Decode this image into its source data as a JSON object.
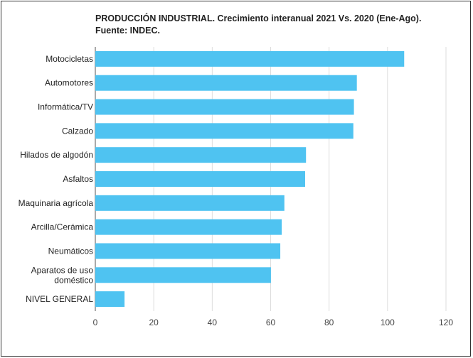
{
  "chart_data": {
    "type": "bar",
    "orientation": "horizontal",
    "title": "PRODUCCIÓN INDUSTRIAL. Crecimiento interanual 2021 Vs. 2020 (Ene-Ago). Fuente: INDEC.",
    "xlabel": "",
    "ylabel": "",
    "xlim": [
      0,
      120
    ],
    "xticks": [
      0,
      20,
      40,
      60,
      80,
      100,
      120
    ],
    "grid": true,
    "bar_color": "#4FC3F1",
    "categories": [
      [
        "Motocicletas"
      ],
      [
        "Automotores"
      ],
      [
        "Informática/TV"
      ],
      [
        "Calzado"
      ],
      [
        "Hilados de algodón"
      ],
      [
        "Asfaltos"
      ],
      [
        "Maquinaria agrícola"
      ],
      [
        "Arcilla/Cerámica"
      ],
      [
        "Neumáticos"
      ],
      [
        "Aparatos de uso",
        "doméstico"
      ],
      [
        "NIVEL GENERAL"
      ]
    ],
    "values": [
      105.7,
      89.5,
      88.5,
      88.3,
      72.1,
      71.8,
      64.7,
      63.8,
      63.3,
      60.1,
      10.0
    ]
  }
}
